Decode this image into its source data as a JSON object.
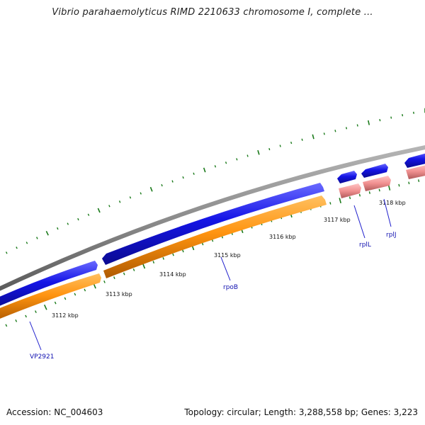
{
  "title": "Vibrio parahaemolyticus RIMD 2210633 chromosome I, complete ...",
  "footer": {
    "accession": "Accession: NC_004603",
    "summary": "Topology: circular; Length: 3,288,558 bp; Genes: 3,223"
  },
  "colors": {
    "backbone": "#8c8c8c",
    "cds_forward": "#1414e6",
    "cds_reverse": "#ff9410",
    "rrna": "#f09090",
    "tick": "#1a7a1a",
    "label_line": "#1e1ecc"
  },
  "ticks": [
    {
      "label": "3112 kbp"
    },
    {
      "label": "3113 kbp"
    },
    {
      "label": "3114 kbp"
    },
    {
      "label": "3115 kbp"
    },
    {
      "label": "3116 kbp"
    },
    {
      "label": "3117 kbp"
    },
    {
      "label": "3118 kbp"
    }
  ],
  "genes": [
    {
      "label": "VP2921"
    },
    {
      "label": "rpoB"
    },
    {
      "label": "rplL"
    },
    {
      "label": "rplJ"
    }
  ]
}
